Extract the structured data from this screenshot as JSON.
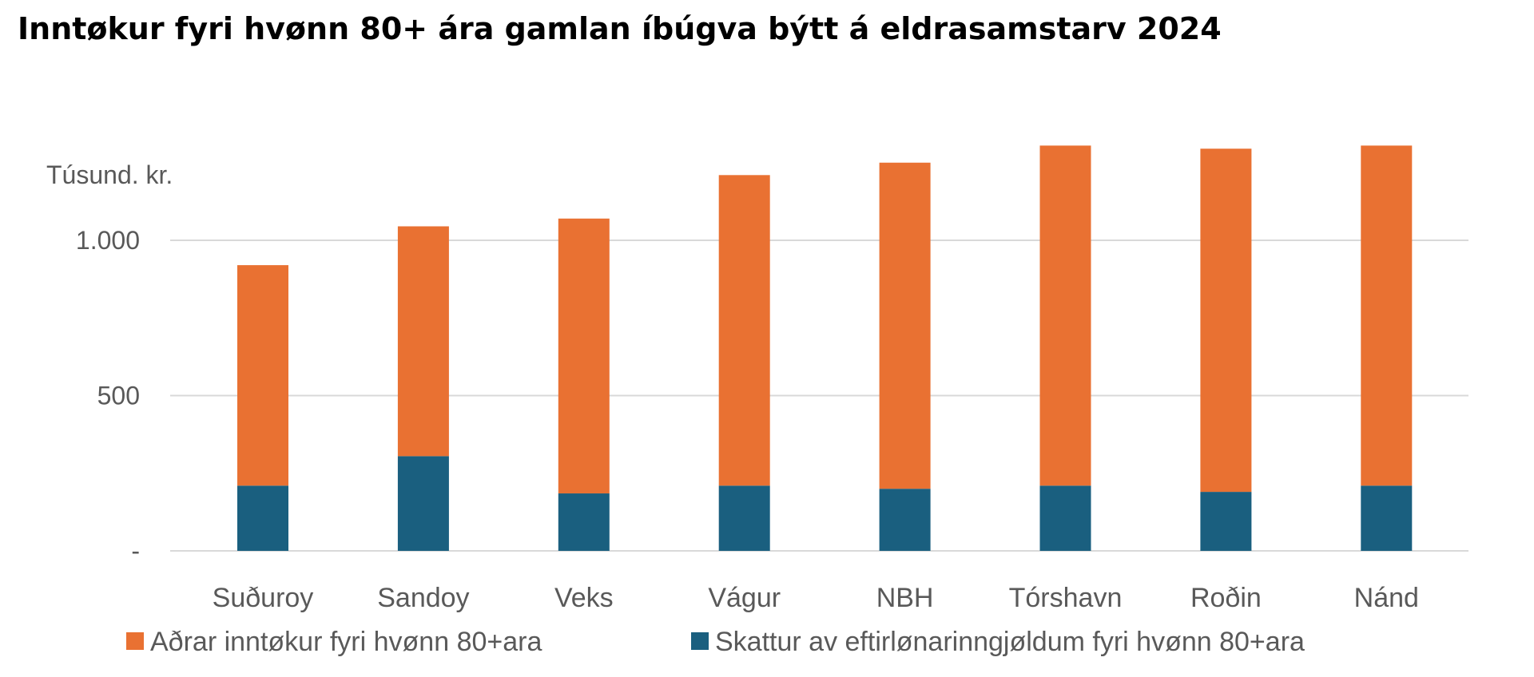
{
  "title": "Inntøkur fyri hvønn 80+ ára gamlan íbúgva býtt á eldrasamstarv 2024",
  "chart_data": {
    "type": "bar",
    "stacked": true,
    "unit_label": "Túsund. kr.",
    "categories": [
      "Suðuroy",
      "Sandoy",
      "Veks",
      "Vágur",
      "NBH",
      "Tórshavn",
      "Roðin",
      "Nánd"
    ],
    "series": [
      {
        "name": "Skattur av eftirlønarinngjøldum fyri hvønn 80+ara",
        "color": "#1a5f7f",
        "values": [
          210,
          305,
          185,
          210,
          200,
          210,
          190,
          210
        ]
      },
      {
        "name": "Aðrar inntøkur fyri hvønn 80+ara",
        "color": "#e97132",
        "values": [
          710,
          740,
          885,
          1000,
          1050,
          1095,
          1105,
          1095
        ]
      }
    ],
    "ylim": [
      0,
      1300
    ],
    "yticks": [
      {
        "value": 0,
        "label": "-"
      },
      {
        "value": 500,
        "label": "500"
      },
      {
        "value": 1000,
        "label": "1.000"
      }
    ],
    "grid": true,
    "legend_position": "bottom"
  }
}
